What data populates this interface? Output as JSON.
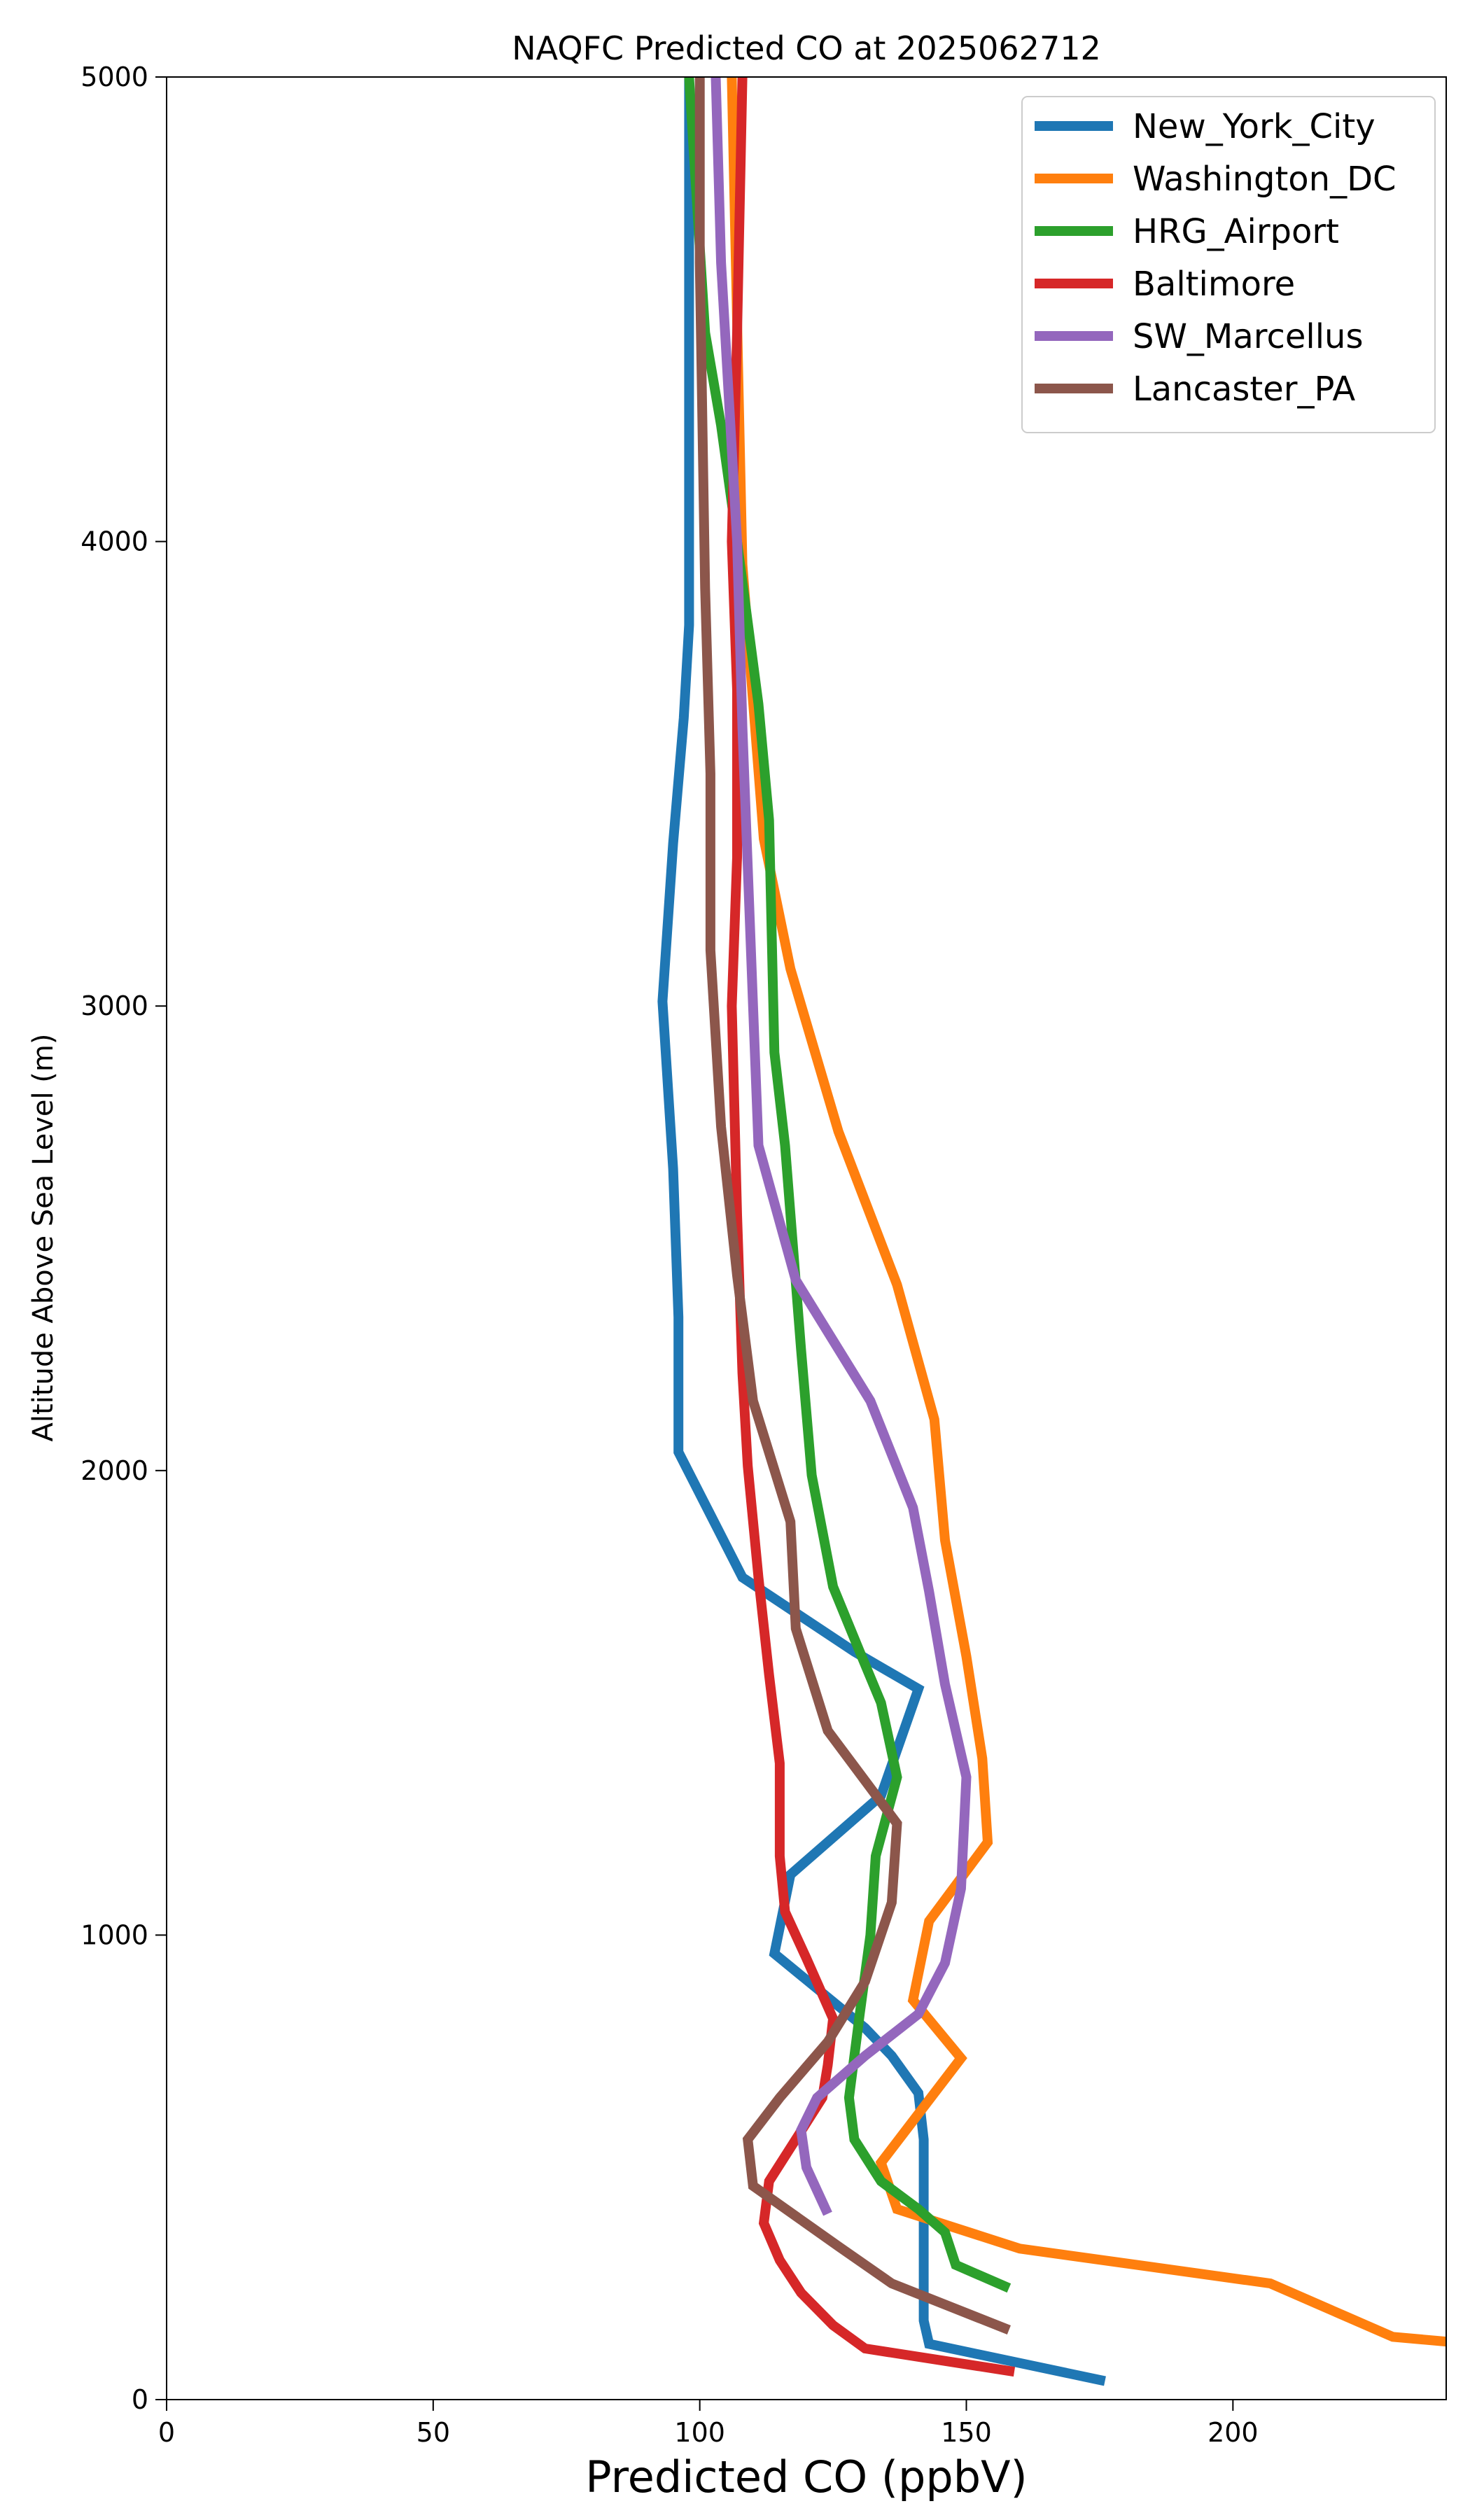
{
  "chart_data": {
    "type": "line",
    "title": "NAQFC Predicted CO at 2025062712",
    "xlabel": "Predicted CO (ppbV)",
    "ylabel": "Altitude Above Sea Level (m)",
    "xlim": [
      0,
      240
    ],
    "ylim": [
      0,
      5000
    ],
    "xticks": [
      0,
      50,
      100,
      150,
      200
    ],
    "yticks": [
      0,
      1000,
      2000,
      3000,
      4000,
      5000
    ],
    "grid": false,
    "legend_position": "top-right",
    "series": [
      {
        "name": "New_York_City",
        "color": "#1f77b4",
        "points": [
          [
            176,
            40
          ],
          [
            143,
            120
          ],
          [
            142,
            170
          ],
          [
            142,
            560
          ],
          [
            141,
            660
          ],
          [
            136,
            740
          ],
          [
            131,
            800
          ],
          [
            114,
            960
          ],
          [
            117,
            1130
          ],
          [
            134,
            1300
          ],
          [
            141,
            1530
          ],
          [
            129,
            1610
          ],
          [
            108,
            1770
          ],
          [
            96,
            2040
          ],
          [
            96,
            2330
          ],
          [
            95,
            2650
          ],
          [
            93,
            3010
          ],
          [
            95,
            3350
          ],
          [
            97,
            3620
          ],
          [
            98,
            3820
          ],
          [
            98,
            5000
          ]
        ]
      },
      {
        "name": "Washington_DC",
        "color": "#ff7f0e",
        "points": [
          [
            240,
            125
          ],
          [
            230,
            135
          ],
          [
            207,
            250
          ],
          [
            160,
            325
          ],
          [
            137,
            410
          ],
          [
            134,
            510
          ],
          [
            149,
            735
          ],
          [
            140,
            860
          ],
          [
            143,
            1030
          ],
          [
            154,
            1200
          ],
          [
            153,
            1380
          ],
          [
            150,
            1600
          ],
          [
            146,
            1850
          ],
          [
            144,
            2110
          ],
          [
            137,
            2400
          ],
          [
            126,
            2730
          ],
          [
            117,
            3080
          ],
          [
            112,
            3360
          ],
          [
            108,
            3950
          ],
          [
            106,
            5000
          ]
        ]
      },
      {
        "name": "HRG_Airport",
        "color": "#2ca02c",
        "points": [
          [
            158,
            240
          ],
          [
            148,
            290
          ],
          [
            146,
            360
          ],
          [
            141,
            410
          ],
          [
            134,
            470
          ],
          [
            129,
            560
          ],
          [
            128,
            650
          ],
          [
            130,
            830
          ],
          [
            132,
            1000
          ],
          [
            133,
            1170
          ],
          [
            137,
            1340
          ],
          [
            134,
            1500
          ],
          [
            130,
            1610
          ],
          [
            125,
            1750
          ],
          [
            121,
            1990
          ],
          [
            119,
            2260
          ],
          [
            116,
            2700
          ],
          [
            114,
            2900
          ],
          [
            113,
            3400
          ],
          [
            111,
            3650
          ],
          [
            107,
            4000
          ],
          [
            104,
            4250
          ],
          [
            101,
            4450
          ],
          [
            98,
            5000
          ]
        ]
      },
      {
        "name": "Baltimore",
        "color": "#d62728",
        "points": [
          [
            159,
            60
          ],
          [
            131,
            110
          ],
          [
            125,
            160
          ],
          [
            119,
            230
          ],
          [
            115,
            300
          ],
          [
            112,
            380
          ],
          [
            113,
            470
          ],
          [
            118,
            560
          ],
          [
            123,
            650
          ],
          [
            124,
            720
          ],
          [
            125,
            820
          ],
          [
            120,
            950
          ],
          [
            116,
            1050
          ],
          [
            115,
            1170
          ],
          [
            115,
            1370
          ],
          [
            113,
            1560
          ],
          [
            111,
            1770
          ],
          [
            109,
            2010
          ],
          [
            108,
            2210
          ],
          [
            107,
            2550
          ],
          [
            106,
            3000
          ],
          [
            107,
            3320
          ],
          [
            107,
            3680
          ],
          [
            106,
            4000
          ],
          [
            107,
            4450
          ],
          [
            108,
            5000
          ]
        ]
      },
      {
        "name": "SW_Marcellus",
        "color": "#9467bd",
        "points": [
          [
            124,
            400
          ],
          [
            120,
            500
          ],
          [
            119,
            580
          ],
          [
            122,
            650
          ],
          [
            131,
            740
          ],
          [
            141,
            830
          ],
          [
            146,
            940
          ],
          [
            149,
            1100
          ],
          [
            150,
            1340
          ],
          [
            146,
            1540
          ],
          [
            143,
            1740
          ],
          [
            140,
            1920
          ],
          [
            132,
            2150
          ],
          [
            118,
            2410
          ],
          [
            111,
            2700
          ],
          [
            110,
            3000
          ],
          [
            109,
            3300
          ],
          [
            108,
            3600
          ],
          [
            107,
            4000
          ],
          [
            104,
            4600
          ],
          [
            103,
            5000
          ]
        ]
      },
      {
        "name": "Lancaster_PA",
        "color": "#8c564b",
        "points": [
          [
            158,
            150
          ],
          [
            136,
            250
          ],
          [
            126,
            330
          ],
          [
            110,
            460
          ],
          [
            109,
            560
          ],
          [
            115,
            650
          ],
          [
            124,
            770
          ],
          [
            131,
            900
          ],
          [
            136,
            1070
          ],
          [
            137,
            1240
          ],
          [
            124,
            1440
          ],
          [
            118,
            1660
          ],
          [
            117,
            1890
          ],
          [
            110,
            2150
          ],
          [
            107,
            2420
          ],
          [
            104,
            2740
          ],
          [
            102,
            3120
          ],
          [
            102,
            3500
          ],
          [
            101,
            3900
          ],
          [
            100,
            4600
          ],
          [
            100,
            5000
          ]
        ]
      }
    ]
  }
}
